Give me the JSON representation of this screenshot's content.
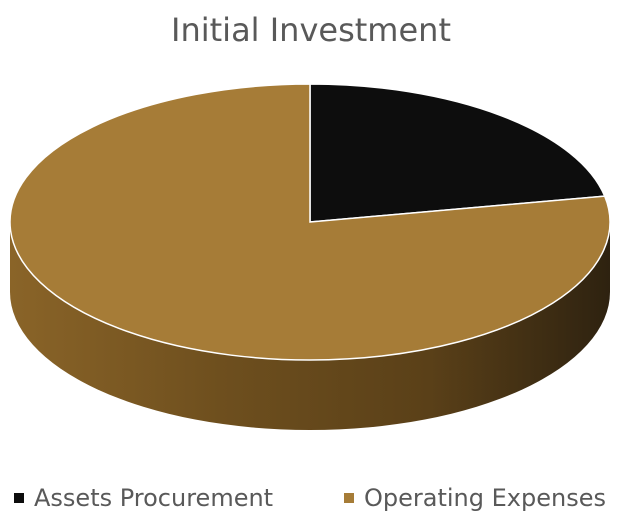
{
  "chart_data": {
    "type": "pie",
    "title": "Initial Investment",
    "categories": [
      "Assets Procurement",
      "Operating Expenses"
    ],
    "values": [
      22,
      78
    ],
    "colors": [
      "#0d0d0d",
      "#a67c37"
    ],
    "legend": "bottom"
  }
}
